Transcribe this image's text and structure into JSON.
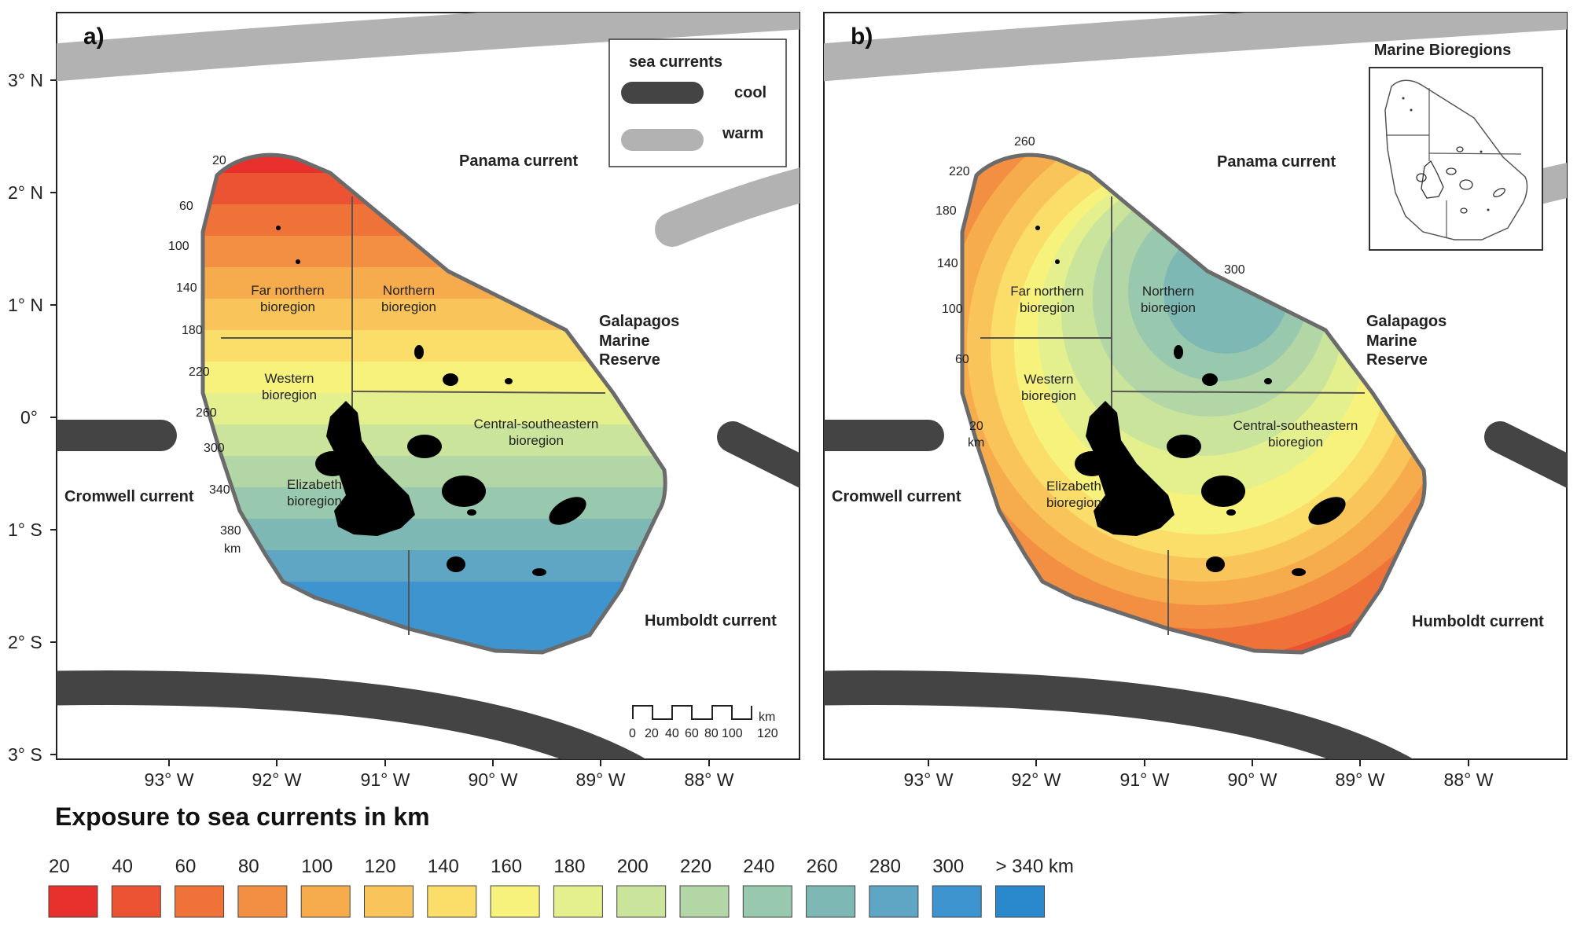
{
  "panel_a": {
    "label": "a)",
    "legend": {
      "title": "sea currents",
      "cool": "cool",
      "warm": "warm"
    },
    "currents": {
      "panama": "Panama current",
      "cromwell": "Cromwell current",
      "humboldt": "Humboldt current",
      "reserve": [
        "Galapagos",
        "Marine",
        "Reserve"
      ]
    },
    "regions": {
      "far_northern": [
        "Far northern",
        "bioregion"
      ],
      "northern": [
        "Northern",
        "bioregion"
      ],
      "western": [
        "Western",
        "bioregion"
      ],
      "elizabeth": [
        "Elizabeth",
        "bioregion"
      ],
      "central": [
        "Central-southeastern",
        "bioregion"
      ]
    },
    "contours": [
      "20",
      "60",
      "100",
      "140",
      "180",
      "220",
      "260",
      "300",
      "340",
      "380",
      "km"
    ],
    "scalebar": {
      "unit": "km",
      "ticks": [
        "0",
        "20",
        "40",
        "60",
        "80",
        "100",
        "120"
      ]
    }
  },
  "panel_b": {
    "label": "b)",
    "inset_title": "Marine Bioregions",
    "currents": {
      "panama": "Panama current",
      "cromwell": "Cromwell current",
      "humboldt": "Humboldt current",
      "reserve": [
        "Galapagos",
        "Marine",
        "Reserve"
      ]
    },
    "regions": {
      "far_northern": [
        "Far northern",
        "bioregion"
      ],
      "northern": [
        "Northern",
        "bioregion"
      ],
      "western": [
        "Western",
        "bioregion"
      ],
      "elizabeth": [
        "Elizabeth",
        "bioregion"
      ],
      "central": [
        "Central-southeastern",
        "bioregion"
      ]
    },
    "contours": [
      "260",
      "220",
      "180",
      "140",
      "100",
      "60",
      "20",
      "km",
      "300"
    ]
  },
  "axes": {
    "lat": [
      "3° N",
      "2° N",
      "1° N",
      "0°",
      "1° S",
      "2° S",
      "3° S"
    ],
    "lon": [
      "93° W",
      "92° W",
      "91° W",
      "90° W",
      "89° W",
      "88° W"
    ]
  },
  "exposure_legend": {
    "title": "Exposure to sea currents in km",
    "labels": [
      "20",
      "40",
      "60",
      "80",
      "100",
      "120",
      "140",
      "160",
      "180",
      "200",
      "220",
      "240",
      "260",
      "280",
      "300",
      "> 340 km"
    ],
    "colors": [
      "#e8312c",
      "#ec5332",
      "#ef7238",
      "#f28f42",
      "#f6ab4c",
      "#f9c55a",
      "#fbdd6a",
      "#f7f27c",
      "#e4ef8e",
      "#cbe49c",
      "#b2d6a6",
      "#98c8ad",
      "#7eb8b4",
      "#5ea6c3",
      "#3e94cf",
      "#2a88cc"
    ]
  },
  "colors": {
    "cool_current": "#444444",
    "warm_current": "#b2b2b2",
    "reserve_border": "#6b6b6b",
    "island": "#000000"
  }
}
